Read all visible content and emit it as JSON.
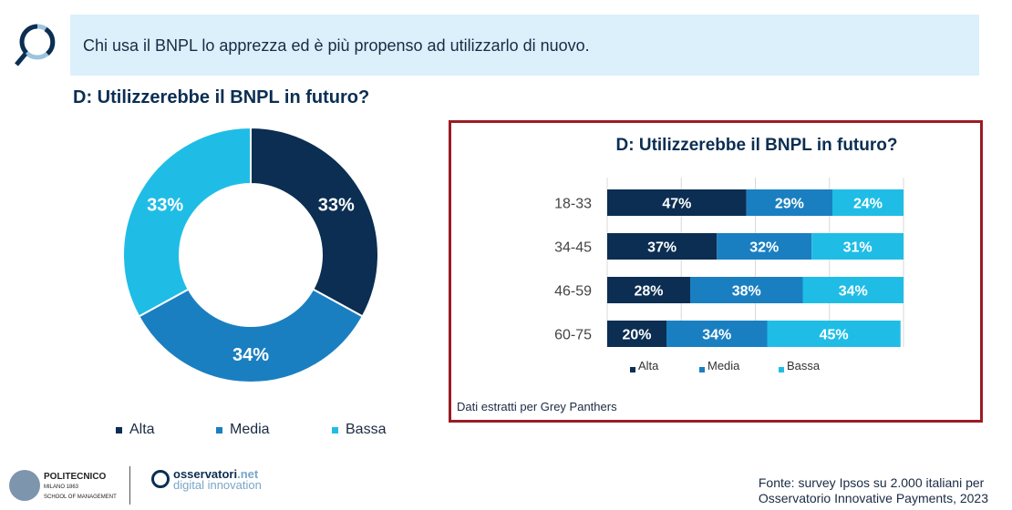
{
  "banner": {
    "text": "Chi usa il BNPL lo apprezza ed è più propenso ad utilizzarlo di nuovo."
  },
  "question": "D: Utilizzerebbe il BNPL in futuro?",
  "colors": {
    "Alta": "#0b2e52",
    "Media": "#1a7fc1",
    "Bassa": "#1fbde6",
    "border": "#9b1c24"
  },
  "chart_data": [
    {
      "type": "pie",
      "title": "D: Utilizzerebbe il BNPL in futuro?",
      "categories": [
        "Alta",
        "Media",
        "Bassa"
      ],
      "values": [
        33,
        34,
        33
      ],
      "labels": [
        "33%",
        "34%",
        "33%"
      ],
      "legend": "bottom"
    },
    {
      "type": "bar",
      "orientation": "horizontal",
      "stacked": true,
      "title": "D: Utilizzerebbe il BNPL in futuro?",
      "categories": [
        "18-33",
        "34-45",
        "46-59",
        "60-75"
      ],
      "series": [
        {
          "name": "Alta",
          "values": [
            47,
            37,
            28,
            20
          ]
        },
        {
          "name": "Media",
          "values": [
            29,
            32,
            38,
            34
          ]
        },
        {
          "name": "Bassa",
          "values": [
            24,
            31,
            34,
            45
          ]
        }
      ],
      "xlim": [
        0,
        100
      ],
      "legend": "bottom",
      "note": "Dati estratti per Grey Panthers"
    }
  ],
  "footer": {
    "logo1": "POLITECNICO MILANO 1863 SCHOOL OF MANAGEMENT",
    "logo2": "osservatori.net digital innovation",
    "source_line1": "Fonte: survey Ipsos su 2.000 italiani per",
    "source_line2": "Osservatorio Innovative Payments, 2023"
  }
}
